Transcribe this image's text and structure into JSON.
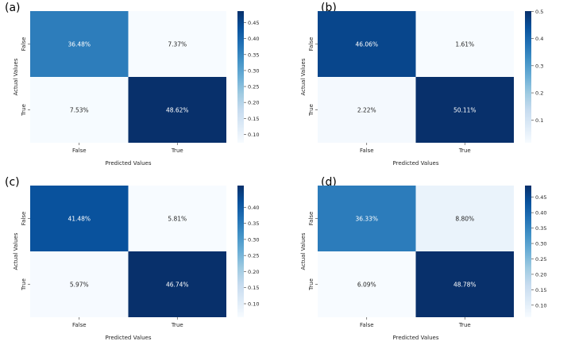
{
  "chart_data": [
    {
      "type": "heatmap",
      "panel_label": "(a)",
      "x_categories": [
        "False",
        "True"
      ],
      "y_categories": [
        "False",
        "True"
      ],
      "xlabel": "Predicted Values",
      "ylabel": "Actual Values",
      "values": [
        [
          0.3648,
          0.0737
        ],
        [
          0.0753,
          0.4862
        ]
      ],
      "cell_labels": [
        [
          "36.48%",
          "7.37%"
        ],
        [
          "7.53%",
          "48.62%"
        ]
      ],
      "colorbar": {
        "ticks": [
          "0.10",
          "0.15",
          "0.20",
          "0.25",
          "0.30",
          "0.35",
          "0.40",
          "0.45"
        ],
        "range": [
          0.0737,
          0.4862
        ]
      }
    },
    {
      "type": "heatmap",
      "panel_label": "(b)",
      "x_categories": [
        "False",
        "True"
      ],
      "y_categories": [
        "False",
        "True"
      ],
      "xlabel": "Predicted Values",
      "ylabel": "Actual Values",
      "values": [
        [
          0.4606,
          0.0161
        ],
        [
          0.0222,
          0.5011
        ]
      ],
      "cell_labels": [
        [
          "46.06%",
          "1.61%"
        ],
        [
          "2.22%",
          "50.11%"
        ]
      ],
      "colorbar": {
        "ticks": [
          "0.1",
          "0.2",
          "0.3",
          "0.4",
          "0.5"
        ],
        "range": [
          0.0161,
          0.5011
        ]
      }
    },
    {
      "type": "heatmap",
      "panel_label": "(c)",
      "x_categories": [
        "False",
        "True"
      ],
      "y_categories": [
        "False",
        "True"
      ],
      "xlabel": "Predicted Values",
      "ylabel": "Actual Values",
      "values": [
        [
          0.4148,
          0.0581
        ],
        [
          0.0597,
          0.4674
        ]
      ],
      "cell_labels": [
        [
          "41.48%",
          "5.81%"
        ],
        [
          "5.97%",
          "46.74%"
        ]
      ],
      "colorbar": {
        "ticks": [
          "0.10",
          "0.15",
          "0.20",
          "0.25",
          "0.30",
          "0.35",
          "0.40"
        ],
        "range": [
          0.0581,
          0.4674
        ]
      }
    },
    {
      "type": "heatmap",
      "panel_label": "(d)",
      "x_categories": [
        "False",
        "True"
      ],
      "y_categories": [
        "False",
        "True"
      ],
      "xlabel": "Predicted Values",
      "ylabel": "Actual Values",
      "values": [
        [
          0.3633,
          0.088
        ],
        [
          0.0609,
          0.4878
        ]
      ],
      "cell_labels": [
        [
          "36.33%",
          "8.80%"
        ],
        [
          "6.09%",
          "48.78%"
        ]
      ],
      "colorbar": {
        "ticks": [
          "0.10",
          "0.15",
          "0.20",
          "0.25",
          "0.30",
          "0.35",
          "0.40",
          "0.45"
        ],
        "range": [
          0.0609,
          0.4878
        ]
      }
    }
  ]
}
